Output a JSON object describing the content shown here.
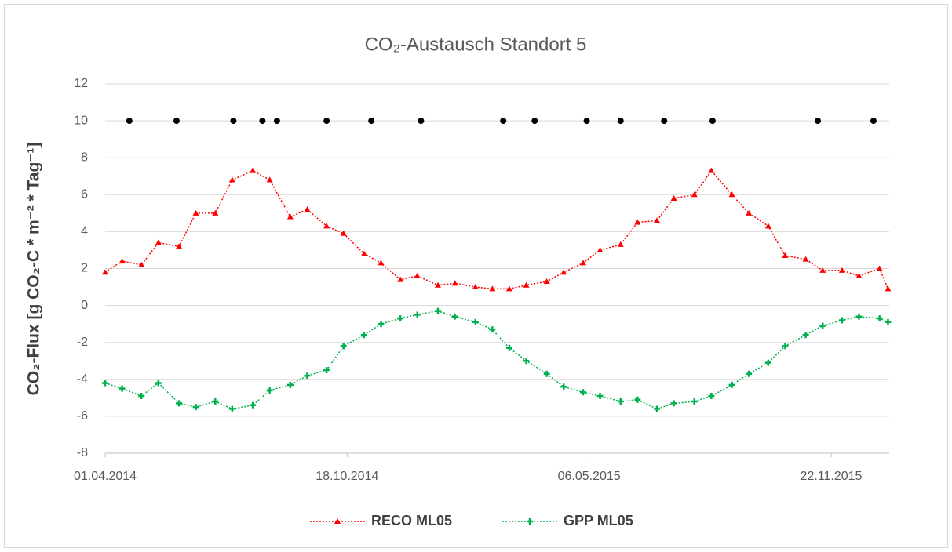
{
  "chart_data": {
    "type": "line",
    "title": "CO₂-Austausch Standort 5",
    "y_label": "CO₂-Flux [g CO₂-C * m⁻² * Tag⁻¹]",
    "x": [
      "01.04.2014",
      "15.04.2014",
      "01.05.2014",
      "15.05.2014",
      "01.06.2014",
      "15.06.2014",
      "01.07.2014",
      "15.07.2014",
      "01.08.2014",
      "15.08.2014",
      "01.09.2014",
      "15.09.2014",
      "01.10.2014",
      "15.10.2014",
      "01.11.2014",
      "15.11.2014",
      "01.12.2014",
      "15.12.2014",
      "01.01.2015",
      "15.01.2015",
      "01.02.2015",
      "15.02.2015",
      "01.03.2015",
      "15.03.2015",
      "01.04.2015",
      "15.04.2015",
      "01.05.2015",
      "15.05.2015",
      "01.06.2015",
      "15.06.2015",
      "01.07.2015",
      "15.07.2015",
      "01.08.2015",
      "15.08.2015",
      "01.09.2015",
      "15.09.2015",
      "01.10.2015",
      "15.10.2015",
      "01.11.2015",
      "15.11.2015",
      "01.12.2015",
      "15.12.2015",
      "01.01.2016",
      "08.01.2016"
    ],
    "series": [
      {
        "name": "RECO ML05",
        "color": "#ff0000",
        "marker": "triangle",
        "values": [
          1.8,
          2.4,
          2.2,
          3.4,
          3.2,
          5.0,
          5.0,
          6.8,
          7.3,
          6.8,
          4.8,
          5.2,
          4.3,
          3.9,
          2.8,
          2.3,
          1.4,
          1.6,
          1.1,
          1.2,
          1.0,
          0.9,
          0.9,
          1.1,
          1.3,
          1.8,
          2.3,
          3.0,
          3.3,
          4.5,
          4.6,
          5.8,
          6.0,
          7.3,
          6.0,
          5.0,
          4.3,
          2.7,
          2.5,
          1.9,
          1.9,
          1.6,
          2.0,
          0.9
        ]
      },
      {
        "name": "GPP ML05",
        "color": "#00b050",
        "marker": "cross",
        "values": [
          -4.2,
          -4.5,
          -4.9,
          -4.2,
          -5.3,
          -5.5,
          -5.2,
          -5.6,
          -5.4,
          -4.6,
          -4.3,
          -3.8,
          -3.5,
          -2.2,
          -1.6,
          -1.0,
          -0.7,
          -0.5,
          -0.3,
          -0.6,
          -0.9,
          -1.3,
          -2.3,
          -3.0,
          -3.7,
          -4.4,
          -4.7,
          -4.9,
          -5.2,
          -5.1,
          -5.6,
          -5.3,
          -5.2,
          -4.9,
          -4.3,
          -3.7,
          -3.1,
          -2.2,
          -1.6,
          -1.1,
          -0.8,
          -0.6,
          -0.7,
          -0.9
        ]
      },
      {
        "color": "#000000",
        "marker": "dot",
        "x": [
          "21.04.2014",
          "30.05.2014",
          "16.07.2014",
          "09.08.2014",
          "21.08.2014",
          "01.10.2014",
          "07.11.2014",
          "18.12.2014",
          "24.02.2015",
          "22.03.2015",
          "04.05.2015",
          "01.06.2015",
          "07.07.2015",
          "16.08.2015",
          "11.11.2015",
          "27.12.2015"
        ],
        "values": [
          10,
          10,
          10,
          10,
          10,
          10,
          10,
          10,
          10,
          10,
          10,
          10,
          10,
          10,
          10,
          10
        ]
      }
    ],
    "xlim": [
      "01.04.2014",
      "09.01.2016"
    ],
    "xticks": [
      "01.04.2014",
      "18.10.2014",
      "06.05.2015",
      "22.11.2015"
    ],
    "ylim": [
      -8,
      12
    ],
    "yticks": [
      -8,
      -6,
      -4,
      -2,
      0,
      2,
      4,
      6,
      8,
      10,
      12
    ],
    "grid": true,
    "legend": "bottom"
  }
}
